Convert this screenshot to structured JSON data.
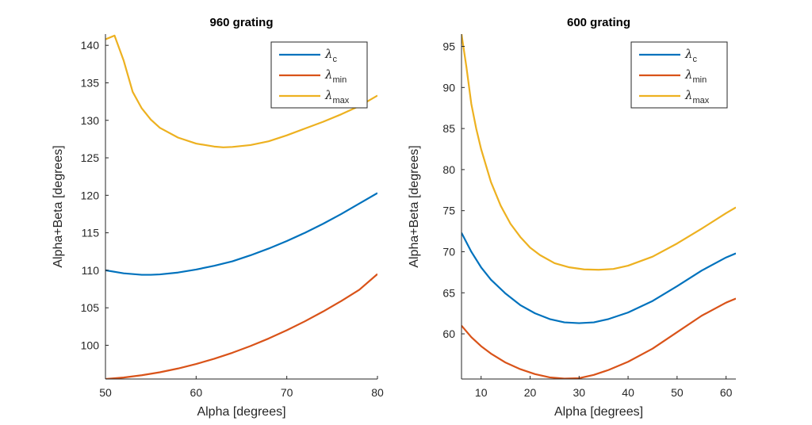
{
  "chart_data": [
    {
      "type": "line",
      "title": "960 grating",
      "xlabel": "Alpha [degrees]",
      "ylabel": "Alpha+Beta [degrees]",
      "xlim": [
        50,
        80
      ],
      "ylim": [
        95.5,
        141.5
      ],
      "xticks": [
        50,
        60,
        70,
        80
      ],
      "yticks": [
        100,
        105,
        110,
        115,
        120,
        125,
        130,
        135,
        140
      ],
      "legend_position": "top-right",
      "series": [
        {
          "name": "λc",
          "sym": "λ",
          "sub": "c",
          "color": "#0072BD",
          "x": [
            50,
            52,
            54,
            55,
            56,
            58,
            60,
            62,
            64,
            66,
            68,
            70,
            72,
            74,
            76,
            78,
            80
          ],
          "y": [
            110.0,
            109.6,
            109.4,
            109.4,
            109.45,
            109.7,
            110.1,
            110.6,
            111.2,
            112.0,
            112.9,
            113.9,
            115.0,
            116.2,
            117.5,
            118.9,
            120.3
          ]
        },
        {
          "name": "λmin",
          "sym": "λ",
          "sub": "min",
          "color": "#D95319",
          "x": [
            50,
            52,
            54,
            56,
            58,
            60,
            62,
            64,
            66,
            68,
            70,
            72,
            74,
            76,
            78,
            80
          ],
          "y": [
            95.5,
            95.7,
            96.0,
            96.4,
            96.9,
            97.5,
            98.2,
            99.0,
            99.9,
            100.9,
            102.0,
            103.2,
            104.5,
            105.9,
            107.4,
            109.5
          ]
        },
        {
          "name": "λmax",
          "sym": "λ",
          "sub": "max",
          "color": "#EDB120",
          "x": [
            50,
            51,
            52,
            53,
            54,
            55,
            56,
            58,
            60,
            62,
            63,
            64,
            66,
            68,
            70,
            72,
            74,
            76,
            78,
            80
          ],
          "y": [
            140.8,
            141.3,
            138.0,
            133.8,
            131.6,
            130.1,
            129.0,
            127.7,
            126.9,
            126.5,
            126.4,
            126.45,
            126.7,
            127.2,
            128.0,
            128.9,
            129.8,
            130.8,
            131.9,
            133.3
          ]
        }
      ]
    },
    {
      "type": "line",
      "title": "600 grating",
      "xlabel": "Alpha [degrees]",
      "ylabel": "Alpha+Beta [degrees]",
      "xlim": [
        6,
        62
      ],
      "ylim": [
        54.5,
        96.5
      ],
      "xticks": [
        10,
        20,
        30,
        40,
        50,
        60
      ],
      "yticks": [
        60,
        65,
        70,
        75,
        80,
        85,
        90,
        95
      ],
      "legend_position": "top-right",
      "series": [
        {
          "name": "λc",
          "sym": "λ",
          "sub": "c",
          "color": "#0072BD",
          "x": [
            6,
            8,
            10,
            12,
            15,
            18,
            21,
            24,
            27,
            30,
            33,
            36,
            40,
            45,
            50,
            55,
            60,
            62
          ],
          "y": [
            72.3,
            70.0,
            68.1,
            66.6,
            64.9,
            63.5,
            62.5,
            61.8,
            61.4,
            61.3,
            61.4,
            61.8,
            62.6,
            64.0,
            65.8,
            67.7,
            69.3,
            69.8
          ]
        },
        {
          "name": "λmin",
          "sym": "λ",
          "sub": "min",
          "color": "#D95319",
          "x": [
            6,
            8,
            10,
            12,
            15,
            18,
            21,
            24,
            27,
            30,
            33,
            36,
            40,
            45,
            50,
            55,
            60,
            62
          ],
          "y": [
            61.0,
            59.6,
            58.5,
            57.6,
            56.5,
            55.7,
            55.1,
            54.7,
            54.55,
            54.6,
            55.0,
            55.6,
            56.6,
            58.2,
            60.2,
            62.2,
            63.8,
            64.3
          ]
        },
        {
          "name": "λmax",
          "sym": "λ",
          "sub": "max",
          "color": "#EDB120",
          "x": [
            6,
            7,
            8,
            9,
            10,
            12,
            14,
            16,
            18,
            20,
            22,
            25,
            28,
            31,
            34,
            37,
            40,
            45,
            50,
            55,
            60,
            62
          ],
          "y": [
            96.5,
            92.5,
            88.0,
            85.0,
            82.5,
            78.5,
            75.6,
            73.4,
            71.8,
            70.5,
            69.6,
            68.6,
            68.1,
            67.85,
            67.8,
            67.9,
            68.3,
            69.4,
            71.0,
            72.8,
            74.7,
            75.4
          ]
        }
      ]
    }
  ]
}
